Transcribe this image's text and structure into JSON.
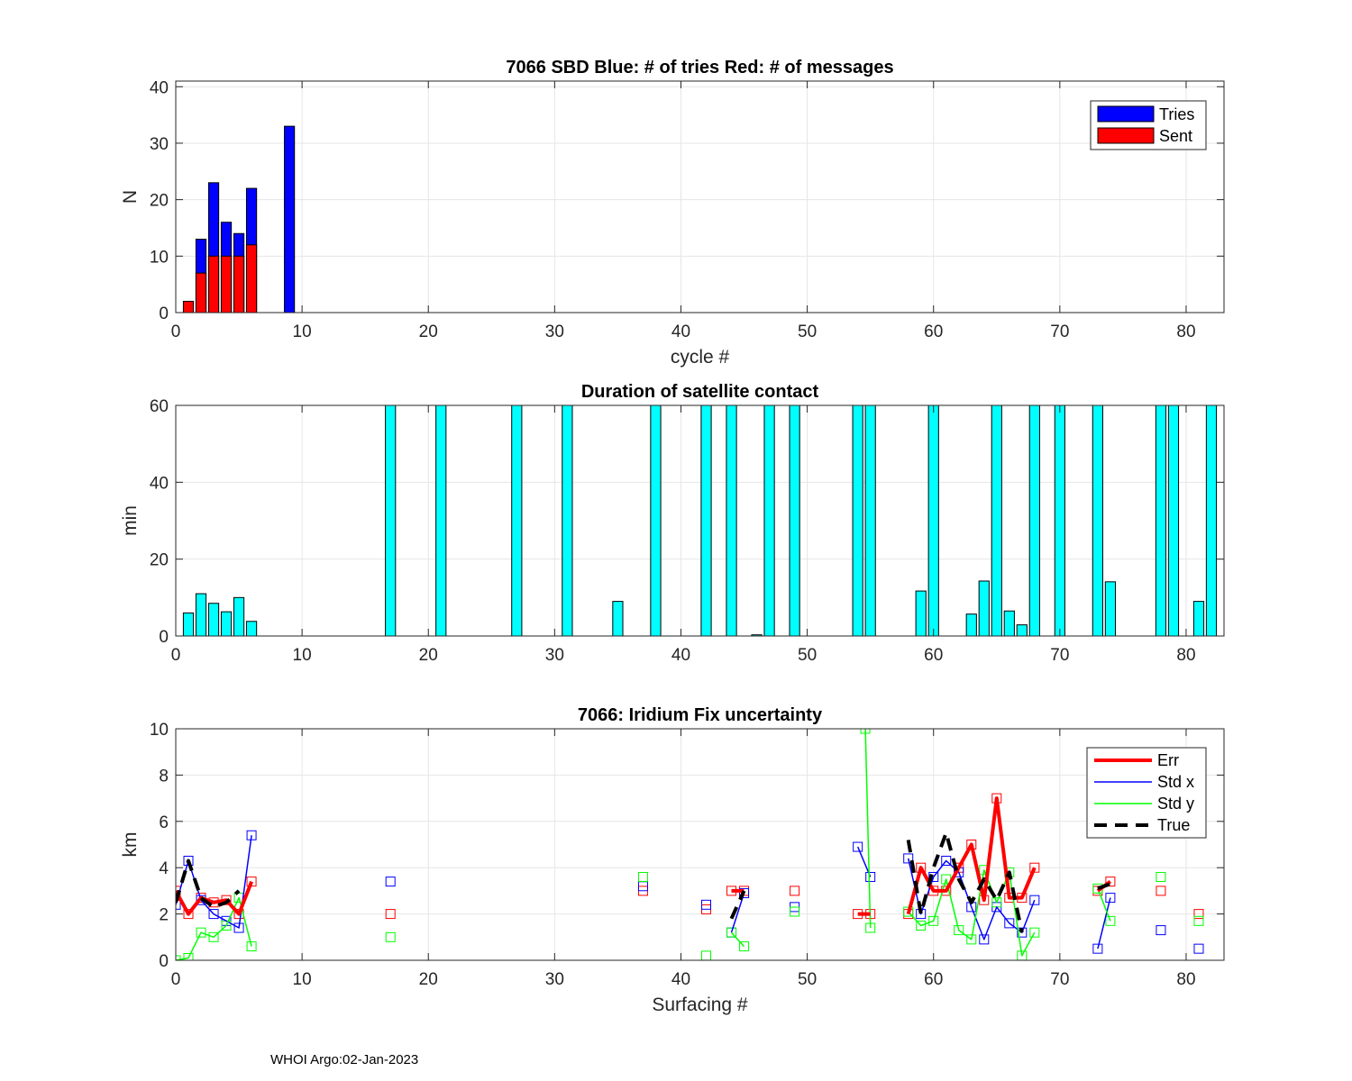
{
  "footer": "WHOI Argo:02-Jan-2023",
  "chart_data": [
    {
      "type": "bar",
      "title": "7066 SBD  Blue: # of tries   Red: # of messages",
      "xlabel": "cycle #",
      "ylabel": "N",
      "xlim": [
        0,
        83
      ],
      "ylim": [
        0,
        41
      ],
      "xticks": [
        0,
        10,
        20,
        30,
        40,
        50,
        60,
        70,
        80
      ],
      "yticks": [
        0,
        10,
        20,
        30,
        40
      ],
      "grid": true,
      "legend_position": "top-right",
      "series": [
        {
          "name": "Tries",
          "color": "#0000ff",
          "x": [
            2,
            3,
            4,
            5,
            6,
            9
          ],
          "values": [
            13,
            23,
            16,
            14,
            22,
            33
          ]
        },
        {
          "name": "Sent",
          "color": "#ff0000",
          "x": [
            1,
            2,
            3,
            4,
            5,
            6
          ],
          "values": [
            2,
            7,
            10,
            10,
            10,
            12
          ]
        }
      ]
    },
    {
      "type": "bar",
      "title": "Duration of satellite contact",
      "xlabel": "",
      "ylabel": "min",
      "xlim": [
        0,
        83
      ],
      "ylim": [
        0,
        60
      ],
      "xticks": [
        0,
        10,
        20,
        30,
        40,
        50,
        60,
        70,
        80
      ],
      "yticks": [
        0,
        20,
        40,
        60
      ],
      "grid": true,
      "color": "#00ffff",
      "x": [
        1,
        2,
        3,
        4,
        5,
        6,
        17,
        21,
        27,
        31,
        35,
        38,
        42,
        44,
        46,
        47,
        49,
        54,
        55,
        59,
        60,
        63,
        64,
        65,
        66,
        67,
        68,
        70,
        73,
        74,
        78,
        79,
        81,
        82
      ],
      "values": [
        6,
        11,
        8.5,
        6.3,
        10,
        3.8,
        60,
        60,
        60,
        60,
        9,
        60,
        60,
        60,
        0.3,
        60,
        60,
        60,
        60,
        11.7,
        60,
        5.7,
        14.3,
        60,
        6.5,
        2.9,
        60,
        60,
        60,
        14.1,
        60,
        60,
        9,
        60
      ]
    },
    {
      "type": "line",
      "title": "7066: Iridium Fix uncertainty",
      "xlabel": "Surfacing #",
      "ylabel": "km",
      "xlim": [
        0,
        83
      ],
      "ylim": [
        0,
        10
      ],
      "xticks": [
        0,
        10,
        20,
        30,
        40,
        50,
        60,
        70,
        80
      ],
      "yticks": [
        0,
        2,
        4,
        6,
        8,
        10
      ],
      "grid": true,
      "legend_position": "top-right",
      "series": [
        {
          "name": "Err",
          "color": "#ff0000",
          "width": 4,
          "dash": "",
          "x": [
            0,
            1,
            2,
            3,
            4,
            5,
            6,
            null,
            17,
            null,
            37,
            null,
            42,
            null,
            44,
            45,
            null,
            49,
            null,
            54,
            55,
            null,
            58,
            59,
            60,
            61,
            62,
            63,
            64,
            65,
            66,
            67,
            68,
            null,
            73,
            74,
            null,
            78,
            null,
            81
          ],
          "y": [
            3.0,
            2.0,
            2.7,
            2.5,
            2.6,
            2.0,
            3.4,
            null,
            2.0,
            null,
            3.0,
            null,
            2.2,
            null,
            3.0,
            3.0,
            null,
            3.0,
            null,
            2.0,
            2.0,
            null,
            2.0,
            4.0,
            3.0,
            3.0,
            4.0,
            5.0,
            2.6,
            7.0,
            2.7,
            2.7,
            4.0,
            null,
            3.0,
            3.4,
            null,
            3.0,
            null,
            2.0
          ]
        },
        {
          "name": "Std x",
          "color": "#0000ff",
          "width": 1.5,
          "dash": "",
          "x": [
            0,
            1,
            2,
            3,
            4,
            5,
            6,
            null,
            17,
            null,
            37,
            null,
            42,
            null,
            44,
            45,
            null,
            49,
            null,
            54,
            55,
            null,
            58,
            59,
            60,
            61,
            62,
            63,
            64,
            65,
            66,
            67,
            68,
            null,
            73,
            74,
            null,
            78,
            null,
            81
          ],
          "y": [
            2.4,
            4.3,
            2.6,
            2.0,
            1.7,
            1.4,
            5.4,
            null,
            3.4,
            null,
            3.2,
            null,
            2.4,
            null,
            1.2,
            2.9,
            null,
            2.3,
            null,
            4.9,
            3.6,
            null,
            4.4,
            2.0,
            3.6,
            4.3,
            3.8,
            2.3,
            0.9,
            2.3,
            1.6,
            1.2,
            2.6,
            null,
            0.5,
            2.7,
            null,
            1.3,
            null,
            0.5
          ]
        },
        {
          "name": "Std y",
          "color": "#00ff00",
          "width": 1.5,
          "dash": "",
          "x": [
            0,
            1,
            2,
            3,
            4,
            5,
            6,
            null,
            17,
            null,
            37,
            null,
            42,
            null,
            44,
            45,
            null,
            49,
            null,
            54.6,
            55,
            null,
            58,
            59,
            60,
            61,
            62,
            63,
            64,
            65,
            66,
            67,
            68,
            null,
            73,
            74,
            null,
            78,
            null,
            81
          ],
          "y": [
            0.0,
            0.1,
            1.2,
            1.0,
            1.5,
            2.7,
            0.6,
            null,
            1.0,
            null,
            3.6,
            null,
            0.2,
            null,
            1.2,
            0.6,
            null,
            2.1,
            null,
            10.0,
            1.4,
            null,
            2.1,
            1.5,
            1.7,
            3.5,
            1.3,
            0.9,
            3.9,
            2.5,
            3.8,
            0.2,
            1.2,
            null,
            3.1,
            1.7,
            null,
            3.6,
            null,
            1.7
          ]
        },
        {
          "name": "True",
          "color": "#000000",
          "width": 4,
          "dash": "14,9",
          "x": [
            0,
            1,
            2,
            3,
            4,
            5,
            null,
            44,
            45,
            null,
            58,
            59,
            60,
            61,
            62,
            63,
            64,
            65,
            66,
            67,
            null,
            73,
            74
          ],
          "y": [
            2.5,
            4.3,
            2.7,
            2.3,
            2.5,
            3.0,
            null,
            1.8,
            3.0,
            null,
            5.2,
            2.0,
            4.0,
            5.5,
            3.5,
            2.5,
            3.5,
            2.6,
            3.8,
            1.2,
            null,
            3.1,
            3.3
          ]
        }
      ],
      "markers": [
        {
          "series": "Err",
          "color": "#ff0000"
        },
        {
          "series": "Std x",
          "color": "#0000ff"
        },
        {
          "series": "Std y",
          "color": "#00ff00"
        }
      ]
    }
  ]
}
